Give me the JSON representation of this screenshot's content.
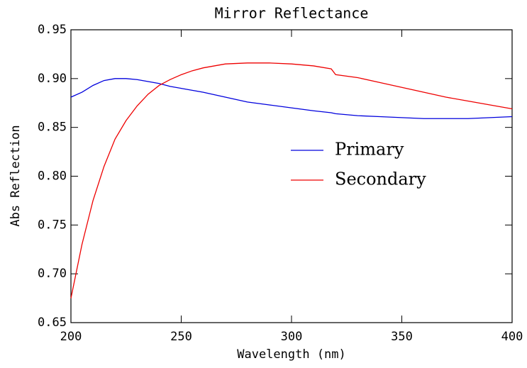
{
  "chart_data": {
    "type": "line",
    "title": "Mirror Reflectance",
    "x_label": "Wavelength (nm)",
    "y_label": "Abs Reflection",
    "x": [
      200,
      205,
      210,
      215,
      220,
      225,
      230,
      235,
      240,
      245,
      250,
      255,
      260,
      270,
      280,
      290,
      300,
      310,
      318,
      320,
      330,
      340,
      350,
      360,
      370,
      380,
      390,
      400
    ],
    "series": [
      {
        "name": "Primary",
        "color": "#0000dd",
        "values": [
          0.881,
          0.886,
          0.893,
          0.898,
          0.9,
          0.9,
          0.899,
          0.897,
          0.895,
          0.892,
          0.89,
          0.888,
          0.886,
          0.881,
          0.876,
          0.873,
          0.87,
          0.867,
          0.865,
          0.864,
          0.862,
          0.861,
          0.86,
          0.859,
          0.859,
          0.859,
          0.86,
          0.861
        ]
      },
      {
        "name": "Secondary",
        "color": "#ee0000",
        "values": [
          0.675,
          0.73,
          0.775,
          0.81,
          0.838,
          0.857,
          0.872,
          0.884,
          0.893,
          0.899,
          0.904,
          0.908,
          0.911,
          0.915,
          0.916,
          0.916,
          0.915,
          0.913,
          0.91,
          0.904,
          0.901,
          0.896,
          0.891,
          0.886,
          0.881,
          0.877,
          0.873,
          0.869
        ]
      }
    ],
    "xlim": [
      200,
      400
    ],
    "xticks": [
      200,
      250,
      300,
      350,
      400
    ],
    "ylim": [
      0.65,
      0.95
    ],
    "yticks": [
      0.65,
      {
        "value": 0.7,
        "label": "0.70"
      },
      0.75,
      {
        "value": 0.8,
        "label": "0.80"
      },
      0.85,
      {
        "value": 0.9,
        "label": "0.90"
      },
      0.95
    ]
  }
}
